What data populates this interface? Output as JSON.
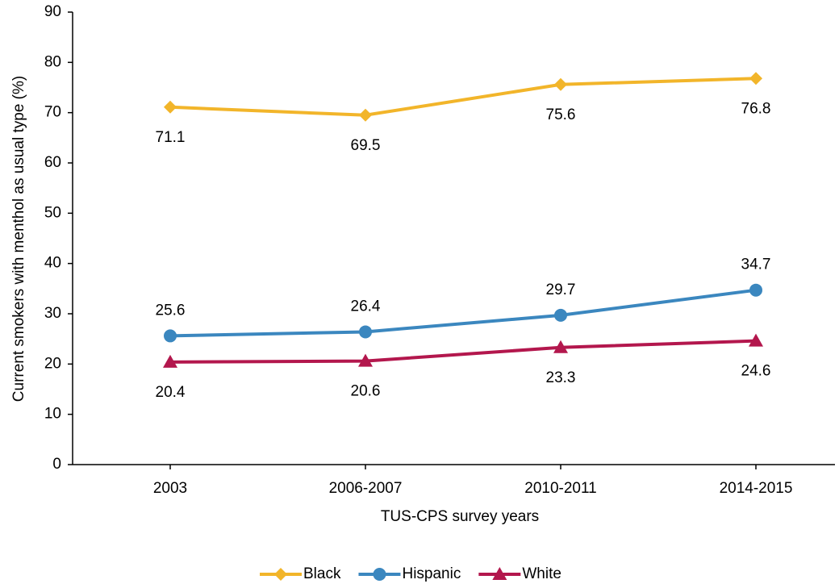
{
  "chart_data": {
    "type": "line",
    "x_label": "TUS-CPS survey years",
    "y_label": "Current smokers with menthol as usual type (%)",
    "categories": [
      "2003",
      "2006-2007",
      "2010-2011",
      "2014-2015"
    ],
    "series": [
      {
        "name": "Black",
        "color": "#f2b52a",
        "marker": "diamond",
        "label_position": "below",
        "values": [
          71.1,
          69.5,
          75.6,
          76.8
        ]
      },
      {
        "name": "Hispanic",
        "color": "#3b87bf",
        "marker": "circle",
        "label_position": "above",
        "values": [
          25.6,
          26.4,
          29.7,
          34.7
        ]
      },
      {
        "name": "White",
        "color": "#b3174d",
        "marker": "triangle",
        "label_position": "below",
        "values": [
          20.4,
          20.6,
          23.3,
          24.6
        ]
      }
    ],
    "ylim": [
      0,
      90
    ],
    "yticks": [
      0,
      10,
      20,
      30,
      40,
      50,
      60,
      70,
      80,
      90
    ],
    "legend": "bottom"
  }
}
